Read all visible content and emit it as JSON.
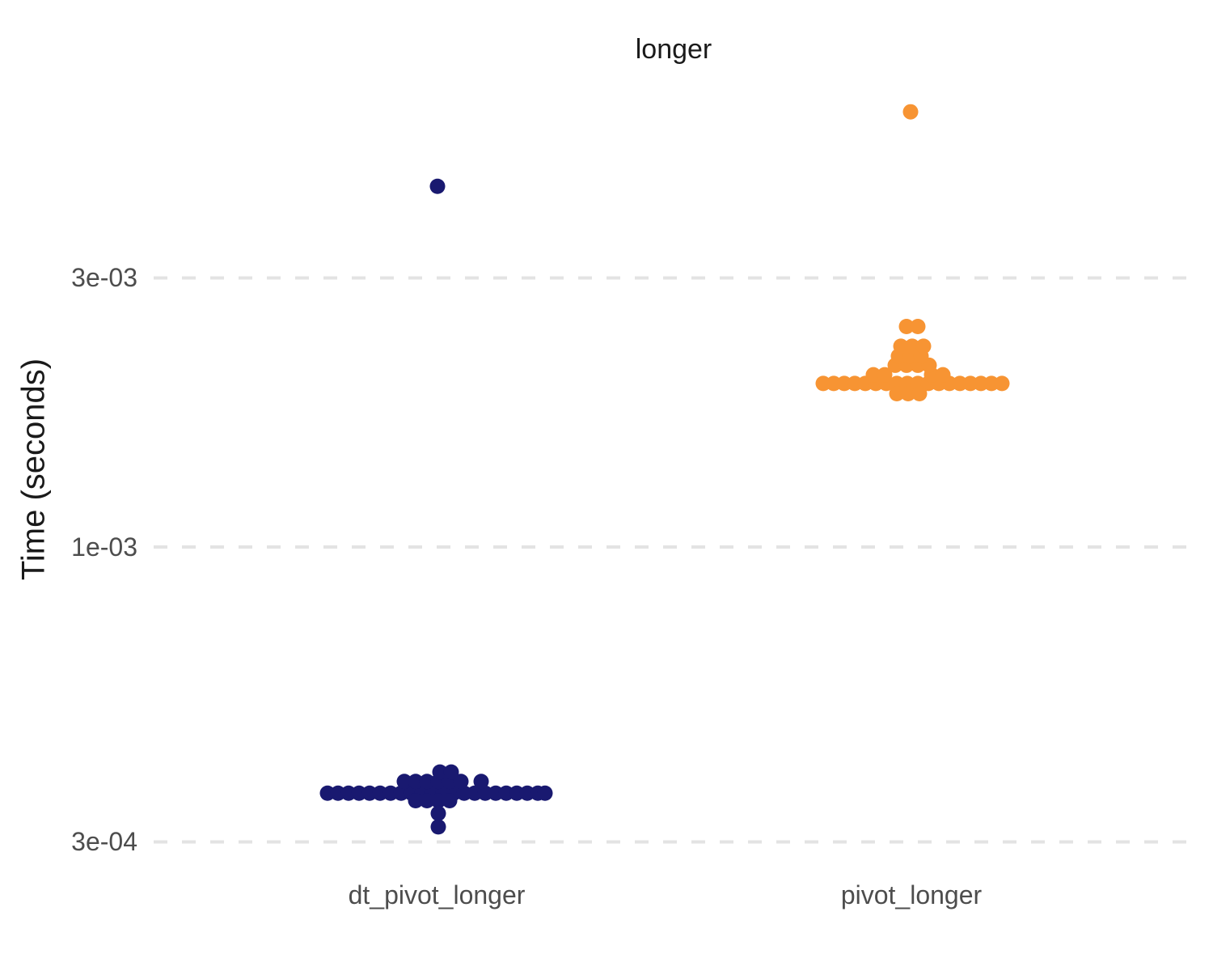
{
  "title": "longer",
  "y_axis": {
    "label": "Time (seconds)",
    "scale": "log10",
    "ticks": [
      {
        "label": "3e-03",
        "value": 0.003
      },
      {
        "label": "1e-03",
        "value": 0.001
      },
      {
        "label": "3e-04",
        "value": 0.0003
      }
    ]
  },
  "x_axis": {
    "categories": [
      {
        "label": "dt_pivot_longer"
      },
      {
        "label": "pivot_longer"
      }
    ]
  },
  "colors": {
    "dt_pivot_longer": "#191970",
    "pivot_longer": "#F79433",
    "gridline": "#E3E3E3",
    "tick_text": "#4d4d4d",
    "title_text": "#1a1a1a"
  },
  "chart_data": {
    "type": "scatter",
    "subtype": "beeswarm",
    "title": "longer",
    "xlabel": "",
    "ylabel": "Time (seconds)",
    "yscale": "log",
    "ylim": [
      0.00025,
      0.007
    ],
    "grid": "dashed horizontal at tick values",
    "legend": "none",
    "series": [
      {
        "name": "dt_pivot_longer",
        "color": "#191970",
        "median_seconds": 0.000366,
        "points": [
          [
            -135,
            0.000366
          ],
          [
            -122,
            0.000366
          ],
          [
            -109,
            0.000366
          ],
          [
            -96,
            0.000366
          ],
          [
            -83,
            0.000366
          ],
          [
            -70,
            0.000366
          ],
          [
            -57,
            0.000366
          ],
          [
            -44,
            0.000366
          ],
          [
            -31,
            0.000366
          ],
          [
            -18,
            0.000366
          ],
          [
            -5,
            0.000366
          ],
          [
            8,
            0.000366
          ],
          [
            21,
            0.000366
          ],
          [
            34,
            0.000366
          ],
          [
            47,
            0.000366
          ],
          [
            60,
            0.000366
          ],
          [
            73,
            0.000366
          ],
          [
            86,
            0.000366
          ],
          [
            99,
            0.000366
          ],
          [
            112,
            0.000366
          ],
          [
            125,
            0.000366
          ],
          [
            134,
            0.000366
          ],
          [
            -26,
            0.000355
          ],
          [
            -12,
            0.000355
          ],
          [
            2,
            0.000355
          ],
          [
            16,
            0.000355
          ],
          [
            -40,
            0.000384
          ],
          [
            -26,
            0.000384
          ],
          [
            -12,
            0.000384
          ],
          [
            2,
            0.000384
          ],
          [
            16,
            0.000384
          ],
          [
            30,
            0.000384
          ],
          [
            55,
            0.000384
          ],
          [
            4,
            0.000399
          ],
          [
            18,
            0.000399
          ],
          [
            2,
            0.000337
          ],
          [
            2,
            0.000319
          ],
          [
            1,
            0.00436
          ]
        ]
      },
      {
        "name": "pivot_longer",
        "color": "#F79433",
        "median_seconds": 0.00195,
        "points": [
          [
            -110,
            0.00195
          ],
          [
            -97,
            0.00195
          ],
          [
            -84,
            0.00195
          ],
          [
            -71,
            0.00195
          ],
          [
            -58,
            0.00195
          ],
          [
            -45,
            0.00195
          ],
          [
            -32,
            0.00195
          ],
          [
            -19,
            0.00195
          ],
          [
            -6,
            0.00195
          ],
          [
            7,
            0.00195
          ],
          [
            20,
            0.00195
          ],
          [
            33,
            0.00195
          ],
          [
            46,
            0.00195
          ],
          [
            59,
            0.00195
          ],
          [
            72,
            0.00195
          ],
          [
            85,
            0.00195
          ],
          [
            98,
            0.00195
          ],
          [
            111,
            0.00195
          ],
          [
            -19,
            0.00187
          ],
          [
            -5,
            0.00187
          ],
          [
            9,
            0.00187
          ],
          [
            -48,
            0.00202
          ],
          [
            -34,
            0.00202
          ],
          [
            24,
            0.00202
          ],
          [
            38,
            0.00202
          ],
          [
            -21,
            0.0021
          ],
          [
            -7,
            0.0021
          ],
          [
            7,
            0.0021
          ],
          [
            21,
            0.0021
          ],
          [
            -17,
            0.00218
          ],
          [
            -3,
            0.00218
          ],
          [
            11,
            0.00218
          ],
          [
            -14,
            0.00227
          ],
          [
            0,
            0.00227
          ],
          [
            14,
            0.00227
          ],
          [
            -7,
            0.00246
          ],
          [
            7,
            0.00246
          ],
          [
            -2,
            0.00591
          ]
        ]
      }
    ]
  }
}
